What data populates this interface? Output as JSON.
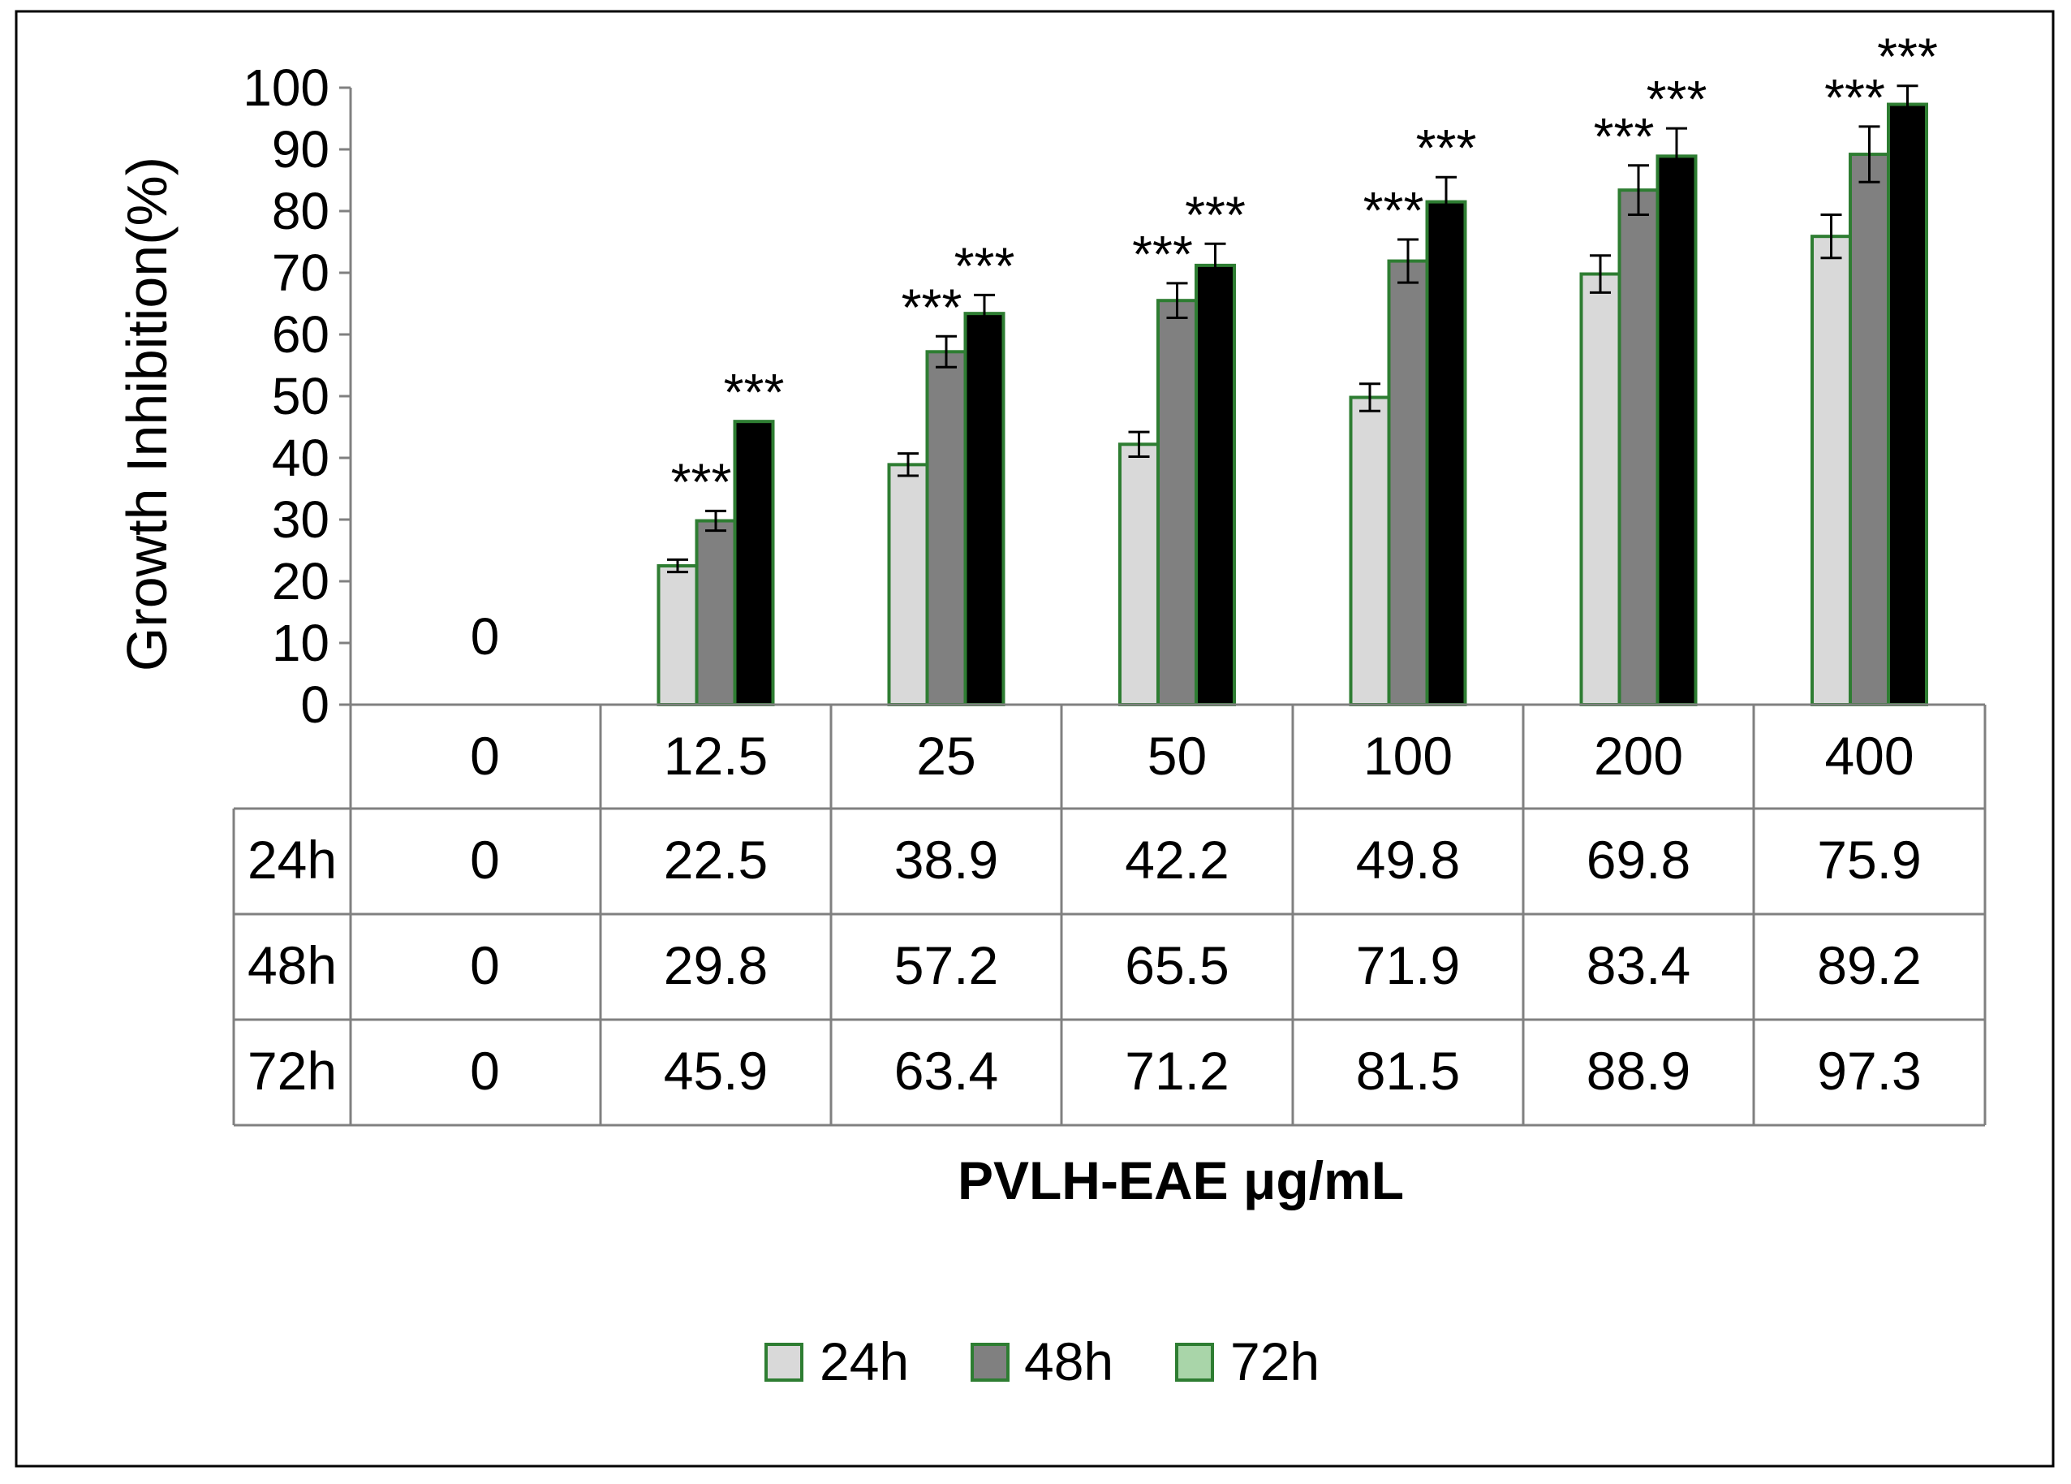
{
  "chart_data": {
    "type": "bar",
    "title": "",
    "xlabel": "PVLH-EAE  μg/mL",
    "ylabel": "Growth Inhibition(%)",
    "ylim": [
      0,
      100
    ],
    "yticks": [
      0,
      10,
      20,
      30,
      40,
      50,
      60,
      70,
      80,
      90,
      100
    ],
    "ytick_labels": [
      "0",
      "10",
      "20",
      "30",
      "40",
      "50",
      "60",
      "70",
      "80",
      "90",
      "100"
    ],
    "categories": [
      "0",
      "12.5",
      "25",
      "50",
      "100",
      "200",
      "400"
    ],
    "zero_label": "0",
    "series": [
      {
        "name": "24h",
        "values": [
          0,
          22.5,
          38.9,
          42.2,
          49.8,
          69.8,
          75.9
        ],
        "errors": [
          0,
          1.0,
          1.8,
          2.0,
          2.2,
          3.0,
          3.5
        ],
        "cell_text": [
          "0",
          "22.5",
          "38.9",
          "42.2",
          "49.8",
          "69.8",
          "75.9"
        ],
        "color": "#d9d9d9"
      },
      {
        "name": "48h",
        "values": [
          0,
          29.8,
          57.2,
          65.5,
          71.9,
          83.4,
          89.2
        ],
        "errors": [
          0,
          1.6,
          2.5,
          2.8,
          3.5,
          4.0,
          4.5
        ],
        "cell_text": [
          "0",
          "29.8",
          "57.2",
          "65.5",
          "71.9",
          "83.4",
          "89.2"
        ],
        "color": "#808080"
      },
      {
        "name": "72h",
        "values": [
          0,
          45.9,
          63.4,
          71.2,
          81.5,
          88.9,
          97.3
        ],
        "errors": [
          0,
          0,
          3.0,
          3.5,
          4.0,
          4.5,
          3.0
        ],
        "cell_text": [
          "0",
          "45.9",
          "63.4",
          "71.2",
          "81.5",
          "88.9",
          "97.3"
        ],
        "color": "#000000",
        "legend_color": "#a9d5a9"
      }
    ],
    "bar_outline_color": "#2e7d32",
    "significance": "***",
    "significance_marks": [
      {
        "category": "12.5",
        "series": "48h"
      },
      {
        "category": "12.5",
        "series": "72h"
      },
      {
        "category": "25",
        "series": "48h"
      },
      {
        "category": "25",
        "series": "72h"
      },
      {
        "category": "50",
        "series": "48h"
      },
      {
        "category": "50",
        "series": "72h"
      },
      {
        "category": "100",
        "series": "48h"
      },
      {
        "category": "100",
        "series": "72h"
      },
      {
        "category": "200",
        "series": "48h"
      },
      {
        "category": "200",
        "series": "72h"
      },
      {
        "category": "400",
        "series": "48h"
      },
      {
        "category": "400",
        "series": "72h"
      }
    ],
    "legend": {
      "position": "bottom",
      "entries": [
        "24h",
        "48h",
        "72h"
      ]
    },
    "data_table": true,
    "grid": false
  }
}
